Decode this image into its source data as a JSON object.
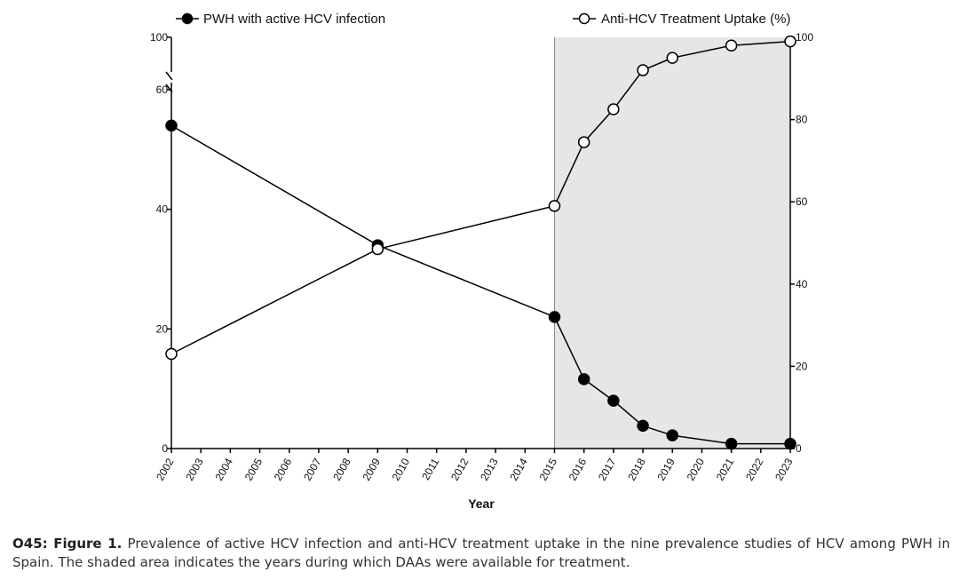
{
  "chart_data": {
    "type": "line",
    "title": "",
    "xlabel": "Year",
    "x": [
      2002,
      2009,
      2015,
      2016,
      2017,
      2018,
      2019,
      2021,
      2023
    ],
    "x_ticks": [
      "2002",
      "2003",
      "2004",
      "2005",
      "2006",
      "2007",
      "2008",
      "2009",
      "2010",
      "2011",
      "2012",
      "2013",
      "2014",
      "2015",
      "2016",
      "2017",
      "2018",
      "2019",
      "2020",
      "2021",
      "2022",
      "2023"
    ],
    "xlim": [
      2002,
      2023
    ],
    "shaded_region": {
      "from": 2015,
      "to": 2023,
      "meaning": "DAAs available"
    },
    "left_axis": {
      "ylim": [
        0,
        100
      ],
      "break": [
        60,
        100
      ],
      "ticks": [
        "0",
        "20",
        "40",
        "60",
        "100"
      ]
    },
    "right_axis": {
      "ylim": [
        0,
        100
      ],
      "ticks": [
        "0",
        "20",
        "40",
        "60",
        "80",
        "100"
      ]
    },
    "series": [
      {
        "name": "PWH with active HCV infection",
        "axis": "left",
        "marker": "filled-circle",
        "values": [
          54,
          34,
          22,
          11.6,
          8,
          3.8,
          2.2,
          0.8,
          0.8
        ]
      },
      {
        "name": "Anti-HCV Treatment Uptake (%)",
        "axis": "right",
        "marker": "open-circle",
        "values": [
          23,
          48.5,
          59,
          74.5,
          82.5,
          92,
          95,
          98,
          99
        ]
      }
    ]
  },
  "caption": {
    "label": "O45: Figure 1.",
    "text": "Prevalence of active HCV infection and anti-HCV treatment uptake in the nine prevalence studies of HCV among PWH in Spain. The shaded area indicates the years during which DAAs were available for treatment."
  }
}
